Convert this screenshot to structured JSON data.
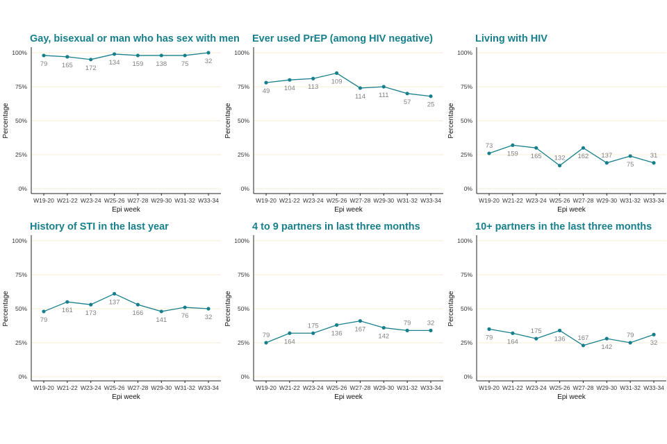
{
  "colors": {
    "line": "#177f8c",
    "title": "#177f8c",
    "grid": "#f1e9c6",
    "axis": "#222222",
    "label": "#808080"
  },
  "chart_data": [
    {
      "type": "line",
      "title": "Gay, bisexual or man who has sex with men",
      "xlabel": "Epi week",
      "ylabel": "Percentage",
      "categories": [
        "W19-20",
        "W21-22",
        "W23-24",
        "W25-26",
        "W27-28",
        "W29-30",
        "W31-32",
        "W33-34"
      ],
      "yticks": [
        "0%",
        "25%",
        "50%",
        "75%",
        "100%"
      ],
      "ylim": [
        0,
        100
      ],
      "grid": "horizontal",
      "values": [
        98,
        97,
        95,
        99,
        98,
        98,
        98,
        100
      ],
      "labels": [
        "79",
        "165",
        "172",
        "134",
        "159",
        "138",
        "75",
        "32"
      ]
    },
    {
      "type": "line",
      "title": "Ever used PrEP (among HIV negative)",
      "xlabel": "Epi week",
      "ylabel": "Percentage",
      "categories": [
        "W19-20",
        "W21-22",
        "W23-24",
        "W25-26",
        "W27-28",
        "W29-30",
        "W31-32",
        "W33-34"
      ],
      "yticks": [
        "0%",
        "25%",
        "50%",
        "75%",
        "100%"
      ],
      "ylim": [
        0,
        100
      ],
      "grid": "horizontal",
      "values": [
        78,
        80,
        81,
        85,
        74,
        75,
        70,
        68
      ],
      "labels": [
        "49",
        "104",
        "113",
        "109",
        "114",
        "111",
        "57",
        "25"
      ]
    },
    {
      "type": "line",
      "title": "Living with HIV",
      "xlabel": "Epi week",
      "ylabel": "Percentage",
      "categories": [
        "W19-20",
        "W21-22",
        "W23-24",
        "W25-26",
        "W27-28",
        "W29-30",
        "W31-32",
        "W33-34"
      ],
      "yticks": [
        "0%",
        "25%",
        "50%",
        "75%",
        "100%"
      ],
      "ylim": [
        0,
        100
      ],
      "grid": "horizontal",
      "values": [
        26,
        32,
        30,
        17,
        30,
        19,
        24,
        19
      ],
      "labels": [
        "73",
        "159",
        "165",
        "132",
        "162",
        "137",
        "75",
        "31"
      ]
    },
    {
      "type": "line",
      "title": "History of STI in the last year",
      "xlabel": "Epi week",
      "ylabel": "Percentage",
      "categories": [
        "W19-20",
        "W21-22",
        "W23-24",
        "W25-26",
        "W27-28",
        "W29-30",
        "W31-32",
        "W33-34"
      ],
      "yticks": [
        "0%",
        "25%",
        "50%",
        "75%",
        "100%"
      ],
      "ylim": [
        0,
        100
      ],
      "grid": "horizontal",
      "values": [
        48,
        55,
        53,
        61,
        53,
        48,
        51,
        50
      ],
      "labels": [
        "79",
        "161",
        "173",
        "137",
        "166",
        "141",
        "76",
        "32"
      ]
    },
    {
      "type": "line",
      "title": "4 to 9 partners in last three months",
      "xlabel": "Epi week",
      "ylabel": "Percentage",
      "categories": [
        "W19-20",
        "W21-22",
        "W23-24",
        "W25-26",
        "W27-28",
        "W29-30",
        "W31-32",
        "W33-34"
      ],
      "yticks": [
        "0%",
        "25%",
        "50%",
        "75%",
        "100%"
      ],
      "ylim": [
        0,
        100
      ],
      "grid": "horizontal",
      "values": [
        25,
        32,
        32,
        38,
        41,
        36,
        34,
        34
      ],
      "labels": [
        "79",
        "164",
        "175",
        "136",
        "167",
        "142",
        "79",
        "32"
      ]
    },
    {
      "type": "line",
      "title": "10+ partners in the last three months",
      "xlabel": "Epi week",
      "ylabel": "Percentage",
      "categories": [
        "W19-20",
        "W21-22",
        "W23-24",
        "W25-26",
        "W27-28",
        "W29-30",
        "W31-32",
        "W33-34"
      ],
      "yticks": [
        "0%",
        "25%",
        "50%",
        "75%",
        "100%"
      ],
      "ylim": [
        0,
        100
      ],
      "grid": "horizontal",
      "values": [
        35,
        32,
        28,
        34,
        23,
        28,
        25,
        31
      ],
      "labels": [
        "79",
        "164",
        "175",
        "136",
        "167",
        "142",
        "79",
        "32"
      ]
    }
  ]
}
